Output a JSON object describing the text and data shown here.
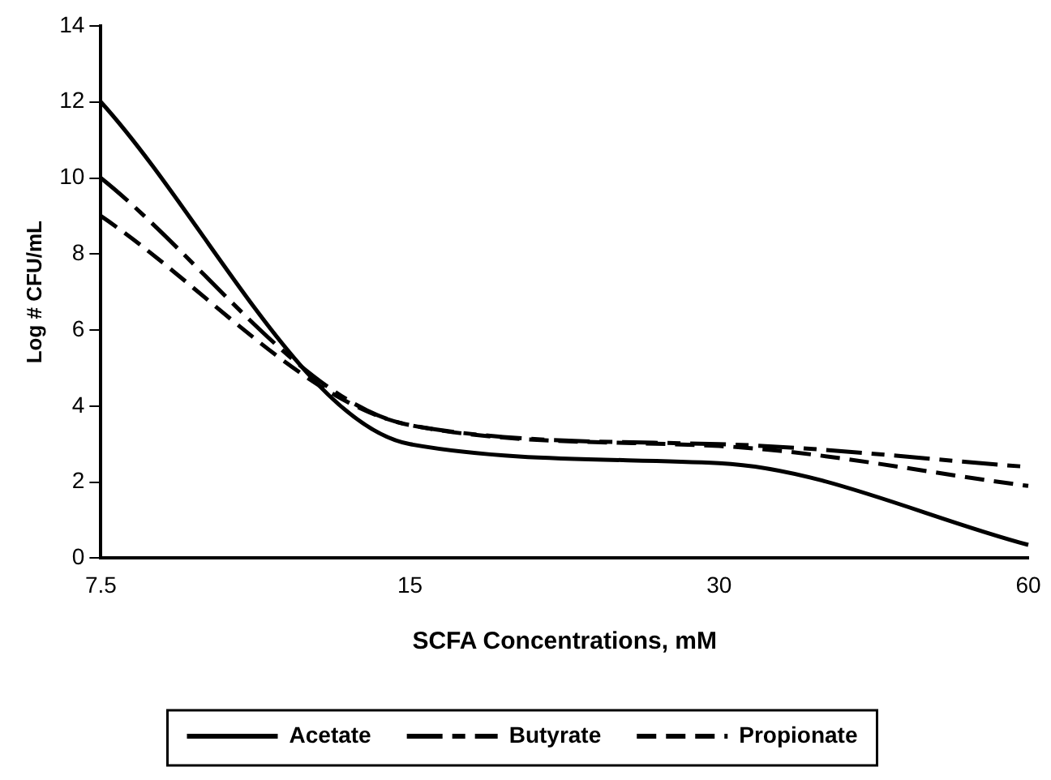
{
  "chart_data": {
    "type": "line",
    "xlabel": "SCFA Concentrations, mM",
    "ylabel": "Log # CFU/mL",
    "categories": [
      "7.5",
      "15",
      "30",
      "60"
    ],
    "ylim": [
      0,
      14
    ],
    "yticks": [
      0,
      2,
      4,
      6,
      8,
      10,
      12,
      14
    ],
    "grid": false,
    "legend": "bottom",
    "marker": "none",
    "series": [
      {
        "name": "Acetate",
        "color": "#000000",
        "line_style": "solid",
        "values": [
          12,
          3.0,
          2.5,
          0.35
        ]
      },
      {
        "name": "Butyrate",
        "color": "#000000",
        "line_style": "dashdot",
        "values": [
          10,
          3.5,
          3.0,
          2.4
        ]
      },
      {
        "name": "Propionate",
        "color": "#000000",
        "line_style": "dashed",
        "values": [
          9,
          3.5,
          2.95,
          1.9
        ]
      }
    ]
  }
}
